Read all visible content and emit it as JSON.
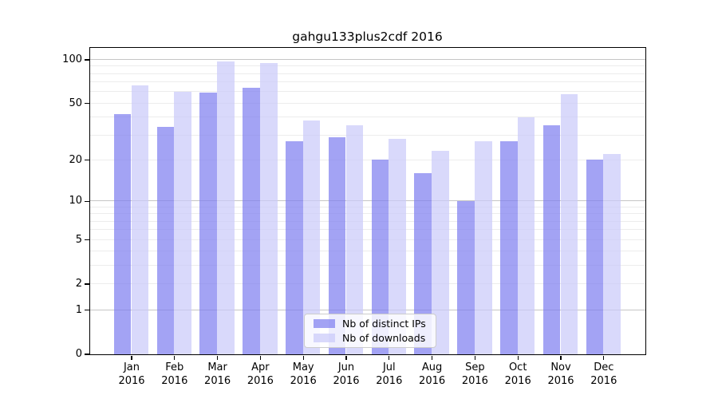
{
  "chart_data": {
    "type": "bar",
    "title": "gahgu133plus2cdf 2016",
    "categories": [
      "Jan 2016",
      "Feb 2016",
      "Mar 2016",
      "Apr 2016",
      "May 2016",
      "Jun 2016",
      "Jul 2016",
      "Aug 2016",
      "Sep 2016",
      "Oct 2016",
      "Nov 2016",
      "Dec 2016"
    ],
    "series": [
      {
        "name": "Nb of distinct IPs",
        "color": "rgba(128,128,240,0.72)",
        "values": [
          42,
          34,
          59,
          64,
          27,
          29,
          20,
          16,
          10,
          27,
          35,
          20
        ]
      },
      {
        "name": "Nb of downloads",
        "color": "rgba(203,203,249,0.72)",
        "values": [
          66,
          60,
          97,
          95,
          38,
          35,
          28,
          23,
          27,
          40,
          58,
          22
        ]
      }
    ],
    "yscale": "log1p",
    "ylabel": "",
    "xlabel": "",
    "yticks": [
      0,
      1,
      2,
      5,
      10,
      20,
      50,
      100
    ],
    "ytick_major_grid": [
      1,
      10,
      100
    ],
    "ytick_minor_grid": [
      2,
      3,
      4,
      5,
      6,
      7,
      8,
      9,
      20,
      30,
      40,
      50,
      60,
      70,
      80,
      90
    ],
    "ylim": [
      0,
      121
    ],
    "grid": true,
    "legend_position": "lower center",
    "colors": {
      "grid_major": "#c6c6c6",
      "grid_minor": "#ececec",
      "axis": "#000000",
      "legend_border": "#cccccc"
    }
  }
}
